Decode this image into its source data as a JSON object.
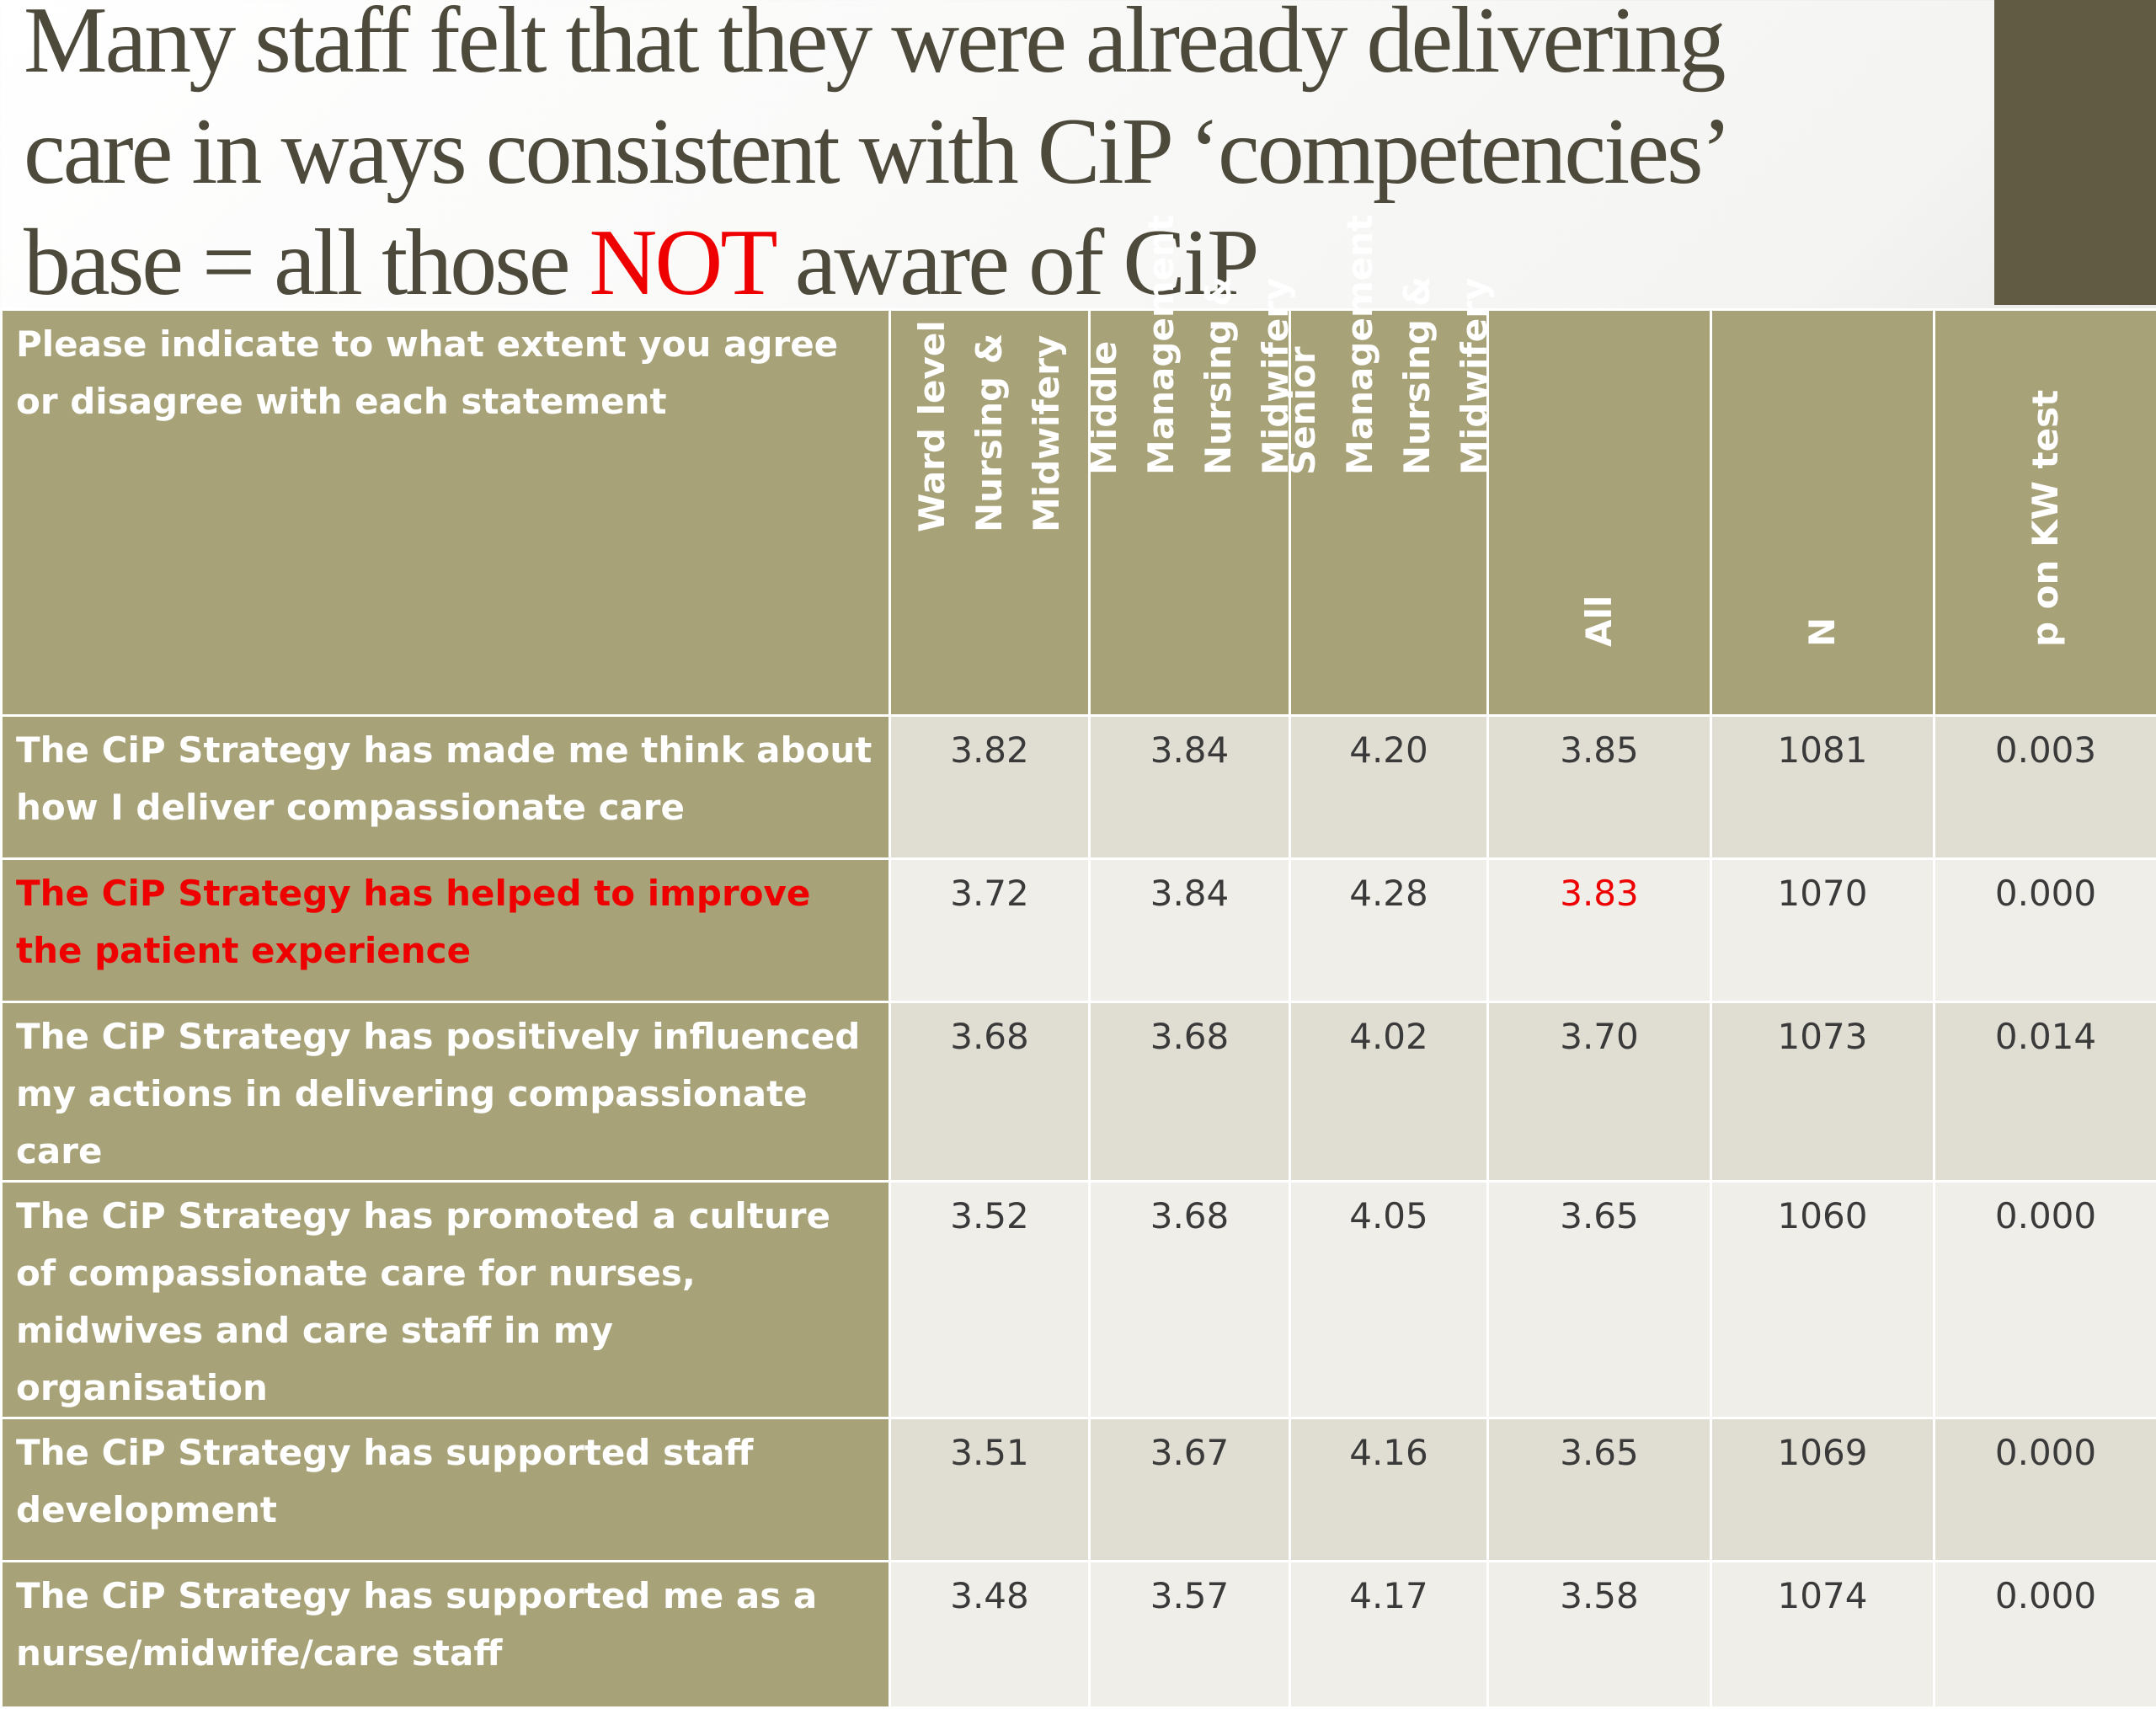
{
  "slide": {
    "title_line1": "Many staff felt that they were already delivering",
    "title_line2": "care in ways consistent with CiP  ‘competencies’",
    "title_line3_pre": "base = all those ",
    "title_line3_emph": "NOT",
    "title_line3_post": " aware of CiP"
  },
  "colors": {
    "accent_block": "#615b44",
    "header_fill": "#a7a278",
    "row_odd_fill": "#e0ded3",
    "row_even_fill": "#efeee9",
    "highlight": "#ef0000",
    "title_text": "#4d4a3c"
  },
  "table": {
    "question_header": "Please indicate to what extent you agree or disagree with each statement",
    "columns": [
      "Ward level  Nursing & Midwifery",
      "Middle Management Nursing & Midwifery",
      "Senior Management Nursing & Midwifery",
      "All",
      "N",
      "p on KW test"
    ],
    "rows": [
      {
        "statement": "The CiP Strategy has made me think about how I deliver compassionate care",
        "ward": "3.82",
        "middle": "3.84",
        "senior": "4.20",
        "all": "3.85",
        "n": "1081",
        "p": "0.003"
      },
      {
        "statement": "The CiP Strategy has helped to improve the patient experience",
        "ward": "3.72",
        "middle": "3.84",
        "senior": "4.28",
        "all": "3.83",
        "n": "1070",
        "p": "0.000"
      },
      {
        "statement": "The CiP Strategy has positively influenced my actions in delivering compassionate care",
        "ward": "3.68",
        "middle": "3.68",
        "senior": "4.02",
        "all": "3.70",
        "n": "1073",
        "p": "0.014"
      },
      {
        "statement": "The CiP Strategy has promoted a culture of compassionate care for nurses, midwives and care staff in my organisation",
        "ward": "3.52",
        "middle": "3.68",
        "senior": "4.05",
        "all": "3.65",
        "n": "1060",
        "p": "0.000"
      },
      {
        "statement": "The CiP Strategy has supported staff development",
        "ward": "3.51",
        "middle": "3.67",
        "senior": "4.16",
        "all": "3.65",
        "n": "1069",
        "p": "0.000"
      },
      {
        "statement": "The CiP Strategy has supported me as a nurse/midwife/care staff",
        "ward": "3.48",
        "middle": "3.57",
        "senior": "4.17",
        "all": "3.58",
        "n": "1074",
        "p": "0.000"
      }
    ]
  }
}
